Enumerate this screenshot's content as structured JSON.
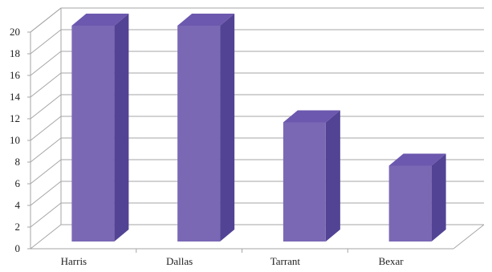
{
  "chart_data": {
    "type": "bar",
    "categories": [
      "Harris",
      "Dallas",
      "Tarrant",
      "Bexar"
    ],
    "values": [
      20,
      20,
      11,
      7
    ],
    "ylim": [
      0,
      20
    ],
    "yticks": [
      0,
      2,
      4,
      6,
      8,
      10,
      12,
      14,
      16,
      18,
      20
    ],
    "grid": true,
    "style": "3d-column",
    "colors": {
      "bar_front": "#7B68B5",
      "bar_side": "#534394",
      "bar_top": "#6C58AE",
      "grid": "#A6A6A6"
    }
  }
}
